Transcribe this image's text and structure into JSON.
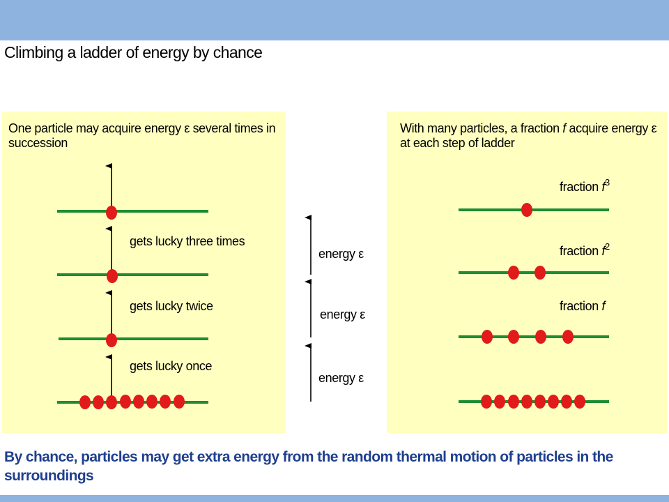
{
  "title": "Climbing a ladder of energy by chance",
  "left_panel": {
    "text_before": "One particle may acquire energy ",
    "epsilon": "ε",
    "text_after": " several times in succession",
    "step_labels": [
      "gets lucky three times",
      "gets lucky twice",
      "gets lucky once"
    ]
  },
  "middle": {
    "energy_word": "energy",
    "epsilon": "ε"
  },
  "right_panel": {
    "text_before": "With many particles, a fraction ",
    "f": "f",
    "text_middle": " acquire energy ",
    "epsilon": "ε",
    "text_after": " at each step of ladder",
    "fraction_word": "fraction",
    "fraction_labels": [
      {
        "base": "f",
        "exp": "3"
      },
      {
        "base": "f",
        "exp": "2"
      },
      {
        "base": "f",
        "exp": ""
      }
    ],
    "particles_per_level": [
      8,
      4,
      2,
      1
    ]
  },
  "caption": "By chance, particles may get extra energy from the random thermal motion of particles in the surroundings",
  "colors": {
    "header_band": "#8fb3df",
    "panel_fill": "#ffffc0",
    "level_line": "#1e8c32",
    "particle": "#e11a1a",
    "caption_text": "#1f3f8f"
  }
}
